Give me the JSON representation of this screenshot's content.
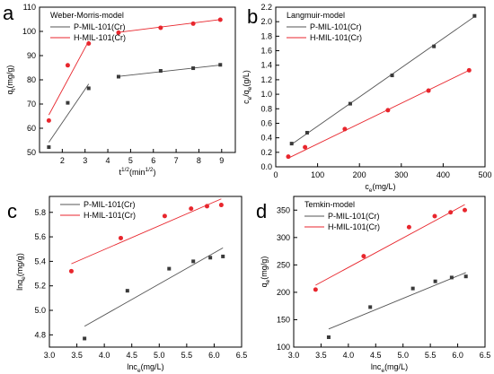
{
  "figure": {
    "colors": {
      "series_P": "#3a3a3a",
      "series_H": "#e8262d",
      "fit_P": "#555555",
      "fit_H": "#e8262d",
      "axis": "#000000"
    }
  },
  "chart_data": [
    {
      "panel": "a",
      "type": "scatter",
      "title": "Weber-Morris-model",
      "xlabel": "t^{1/2}(min^{1/2})",
      "ylabel": "q_t(mg/g)",
      "xlim": [
        1,
        9.6
      ],
      "ylim": [
        50,
        110
      ],
      "xticks": [
        2,
        3,
        4,
        5,
        6,
        7,
        8,
        9
      ],
      "yticks": [
        50,
        60,
        70,
        80,
        90,
        100,
        110
      ],
      "grid": false,
      "legend": "top-left",
      "series": [
        {
          "name": "P-MIL-101(Cr)",
          "color": "#3a3a3a",
          "points": [
            [
              1.41,
              52.2
            ],
            [
              2.24,
              70.5
            ],
            [
              3.16,
              76.5
            ],
            [
              4.47,
              81.3
            ],
            [
              6.32,
              83.7
            ],
            [
              7.75,
              84.8
            ],
            [
              8.94,
              86.2
            ]
          ],
          "fits": [
            {
              "x": [
                1.41,
                3.16
              ],
              "y": [
                54.2,
                78.3
              ]
            },
            {
              "x": [
                4.47,
                8.94
              ],
              "y": [
                81.4,
                86.1
              ]
            }
          ]
        },
        {
          "name": "H-MIL-101(Cr)",
          "color": "#e8262d",
          "points": [
            [
              1.41,
              63.2
            ],
            [
              2.24,
              86.0
            ],
            [
              3.16,
              95.0
            ],
            [
              4.47,
              99.5
            ],
            [
              6.32,
              101.5
            ],
            [
              7.75,
              103.2
            ],
            [
              8.94,
              104.8
            ]
          ],
          "fits": [
            {
              "x": [
                1.41,
                3.16
              ],
              "y": [
                65.5,
                96.0
              ]
            },
            {
              "x": [
                4.47,
                8.94
              ],
              "y": [
                99.6,
                104.9
              ]
            }
          ]
        }
      ]
    },
    {
      "panel": "b",
      "type": "scatter",
      "title": "Langmuir-model",
      "xlabel": "c_e(mg/L)",
      "ylabel": "c_e/q_e(g/L)",
      "xlim": [
        0,
        500
      ],
      "ylim": [
        0,
        2.2
      ],
      "xticks": [
        0,
        100,
        200,
        300,
        400,
        500
      ],
      "yticks": [
        0.0,
        0.2,
        0.4,
        0.6,
        0.8,
        1.0,
        1.2,
        1.4,
        1.6,
        1.8,
        2.0,
        2.2
      ],
      "ytick_decimals": 1,
      "grid": false,
      "legend": "top-left",
      "series": [
        {
          "name": "P-MIL-101(Cr)",
          "color": "#3a3a3a",
          "points": [
            [
              38,
              0.32
            ],
            [
              75,
              0.47
            ],
            [
              178,
              0.87
            ],
            [
              278,
              1.26
            ],
            [
              378,
              1.66
            ],
            [
              475,
              2.08
            ]
          ],
          "fits": [
            {
              "x": [
                38,
                475
              ],
              "y": [
                0.31,
                2.07
              ]
            }
          ]
        },
        {
          "name": "H-MIL-101(Cr)",
          "color": "#e8262d",
          "points": [
            [
              30,
              0.14
            ],
            [
              70,
              0.27
            ],
            [
              165,
              0.52
            ],
            [
              268,
              0.78
            ],
            [
              365,
              1.05
            ],
            [
              462,
              1.33
            ]
          ],
          "fits": [
            {
              "x": [
                30,
                462
              ],
              "y": [
                0.12,
                1.33
              ]
            }
          ]
        }
      ]
    },
    {
      "panel": "c",
      "type": "scatter",
      "title": "",
      "xlabel": "lnc_e(mg/L)",
      "ylabel": "lnq_e(mg/g)",
      "xlim": [
        3.0,
        6.5
      ],
      "ylim": [
        4.7,
        5.93
      ],
      "xticks": [
        3.0,
        3.5,
        4.0,
        4.5,
        5.0,
        5.5,
        6.0,
        6.5
      ],
      "xtick_decimals": 1,
      "yticks": [
        4.8,
        5.0,
        5.2,
        5.4,
        5.6,
        5.8
      ],
      "ytick_decimals": 1,
      "grid": false,
      "legend": "top-left",
      "series": [
        {
          "name": "P-MIL-101(Cr)",
          "color": "#3a3a3a",
          "points": [
            [
              3.64,
              4.77
            ],
            [
              4.42,
              5.16
            ],
            [
              5.18,
              5.34
            ],
            [
              5.62,
              5.4
            ],
            [
              5.93,
              5.43
            ],
            [
              6.16,
              5.44
            ]
          ],
          "fits": [
            {
              "x": [
                3.64,
                6.16
              ],
              "y": [
                4.87,
                5.51
              ]
            }
          ]
        },
        {
          "name": "H-MIL-101(Cr)",
          "color": "#e8262d",
          "points": [
            [
              3.4,
              5.32
            ],
            [
              4.3,
              5.59
            ],
            [
              5.1,
              5.77
            ],
            [
              5.58,
              5.83
            ],
            [
              5.87,
              5.85
            ],
            [
              6.13,
              5.86
            ]
          ],
          "fits": [
            {
              "x": [
                3.4,
                6.13
              ],
              "y": [
                5.38,
                5.91
              ]
            }
          ]
        }
      ]
    },
    {
      "panel": "d",
      "type": "scatter",
      "title": "Temkin-model",
      "xlabel": "lnc_e(mg/L)",
      "ylabel": "q_e(mg/g)",
      "xlim": [
        3.0,
        6.5
      ],
      "ylim": [
        100,
        375
      ],
      "xticks": [
        3.0,
        3.5,
        4.0,
        4.5,
        5.0,
        5.5,
        6.0,
        6.5
      ],
      "xtick_decimals": 1,
      "yticks": [
        100,
        150,
        200,
        250,
        300,
        350
      ],
      "grid": false,
      "legend": "top-left",
      "series": [
        {
          "name": "P-MIL-101(Cr)",
          "color": "#3a3a3a",
          "points": [
            [
              3.64,
              118
            ],
            [
              4.4,
              173
            ],
            [
              5.18,
              207
            ],
            [
              5.59,
              220
            ],
            [
              5.89,
              227
            ],
            [
              6.15,
              229
            ]
          ],
          "fits": [
            {
              "x": [
                3.64,
                6.15
              ],
              "y": [
                133,
                236
              ]
            }
          ]
        },
        {
          "name": "H-MIL-101(Cr)",
          "color": "#e8262d",
          "points": [
            [
              3.4,
              205
            ],
            [
              4.28,
              266
            ],
            [
              5.11,
              319
            ],
            [
              5.58,
              339
            ],
            [
              5.87,
              346
            ],
            [
              6.13,
              350
            ]
          ],
          "fits": [
            {
              "x": [
                3.4,
                6.13
              ],
              "y": [
                213,
                360
              ]
            }
          ]
        }
      ]
    }
  ]
}
